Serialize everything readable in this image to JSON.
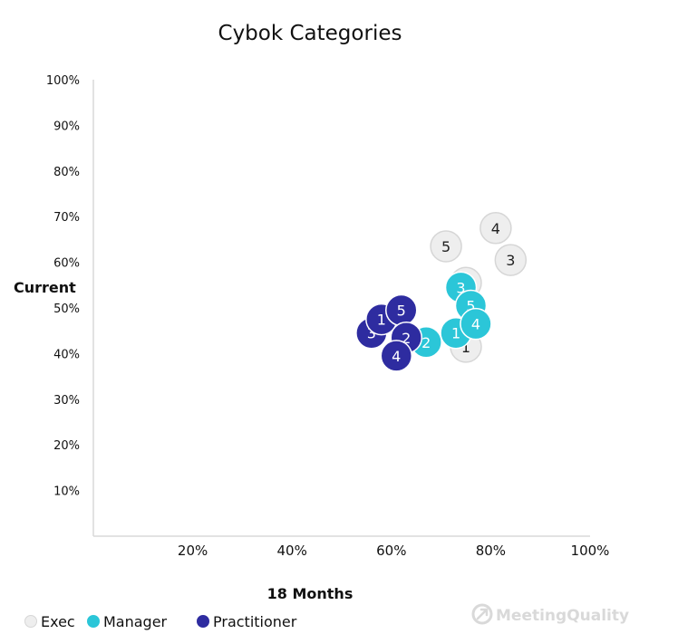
{
  "chart_data": {
    "type": "scatter",
    "title": "Cybok Categories",
    "xlabel": "18 Months",
    "ylabel": "Current",
    "xlim": [
      0,
      100
    ],
    "ylim": [
      0,
      100
    ],
    "x_ticks": [
      "20%",
      "40%",
      "60%",
      "80%",
      "100%"
    ],
    "y_ticks": [
      "10%",
      "20%",
      "30%",
      "40%",
      "50%",
      "60%",
      "70%",
      "80%",
      "90%",
      "100%"
    ],
    "grid": false,
    "legend_position": "bottom-left",
    "series": [
      {
        "name": "Exec",
        "color": "#eeeeee",
        "stroke": "#d6d6d6",
        "text_color": "#222222",
        "points": [
          {
            "label": "5",
            "x": 71,
            "y": 63.5
          },
          {
            "label": "4",
            "x": 81,
            "y": 67.5
          },
          {
            "label": "3",
            "x": 84,
            "y": 60.5
          },
          {
            "label": "2",
            "x": 75,
            "y": 55.5
          },
          {
            "label": "1",
            "x": 75,
            "y": 41.5
          }
        ]
      },
      {
        "name": "Manager",
        "color": "#2bc6d8",
        "stroke": "#ffffff",
        "text_color": "#ffffff",
        "points": [
          {
            "label": "3",
            "x": 74,
            "y": 54.5
          },
          {
            "label": "1",
            "x": 73,
            "y": 44.5
          },
          {
            "label": "5",
            "x": 76,
            "y": 50.5
          },
          {
            "label": "4",
            "x": 77,
            "y": 46.5
          },
          {
            "label": "2",
            "x": 67,
            "y": 42.5
          }
        ]
      },
      {
        "name": "Practitioner",
        "color": "#2e2ca0",
        "stroke": "#ffffff",
        "text_color": "#ffffff",
        "points": [
          {
            "label": "3",
            "x": 56,
            "y": 44.5
          },
          {
            "label": "1",
            "x": 58,
            "y": 47.5
          },
          {
            "label": "5",
            "x": 62,
            "y": 49.5
          },
          {
            "label": "2",
            "x": 63,
            "y": 43.5
          },
          {
            "label": "4",
            "x": 61,
            "y": 39.5
          }
        ]
      }
    ]
  },
  "watermark": {
    "text": "MeetingQuality",
    "icon": "meetingquality-logo-icon"
  }
}
